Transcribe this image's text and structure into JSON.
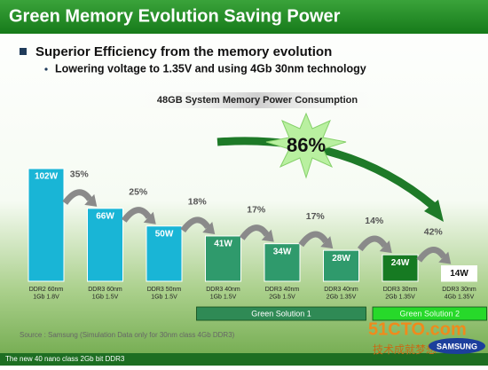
{
  "header": {
    "title": "Green Memory Evolution Saving Power"
  },
  "bullets": {
    "main": "Superior Efficiency from the memory evolution",
    "sub": "Lowering voltage to 1.35V and using 4Gb 30nm technology"
  },
  "chart_data": {
    "type": "bar",
    "title": "48GB System Memory Power Consumption",
    "categories": [
      "DDR2 60nm\n1Gb 1.8V",
      "DDR3 60nm\n1Gb 1.5V",
      "DDR3 50nm\n1Gb 1.5V",
      "DDR3 40nm\n1Gb 1.5V",
      "DDR3 40nm\n2Gb 1.5V",
      "DDR3 40nm\n2Gb 1.35V",
      "DDR3 30nm\n2Gb 1.35V",
      "DDR3 30nm\n4Gb 1.35V"
    ],
    "values": [
      102,
      66,
      50,
      41,
      34,
      28,
      24,
      14
    ],
    "value_labels": [
      "102W",
      "66W",
      "50W",
      "41W",
      "34W",
      "28W",
      "24W",
      "14W"
    ],
    "colors": [
      "#19b5d6",
      "#19b5d6",
      "#19b5d6",
      "#2f9a6c",
      "#2f9a6c",
      "#2f9a6c",
      "#167a22",
      "#ffffff"
    ],
    "reductions": {
      "values": [
        35,
        25,
        18,
        17,
        17,
        14,
        42
      ],
      "value_labels": [
        "35%",
        "25%",
        "18%",
        "17%",
        "17%",
        "14%",
        "42%"
      ]
    },
    "total_reduction": {
      "value": 86,
      "label": "86%"
    },
    "groups": [
      {
        "label": "Green Solution 1",
        "color": "#2f8a55"
      },
      {
        "label": "Green Solution 2",
        "color": "#27d92a"
      }
    ],
    "source": "Source : Samsung (Simulation Data only for 30nm class 4Gb DDR3)"
  },
  "footer": {
    "text": "The new 40 nano class 2Gb bit DDR3",
    "watermark": "51CTO.com",
    "watermark_sub": "技术成就梦想",
    "logo": "SAMSUNG"
  }
}
